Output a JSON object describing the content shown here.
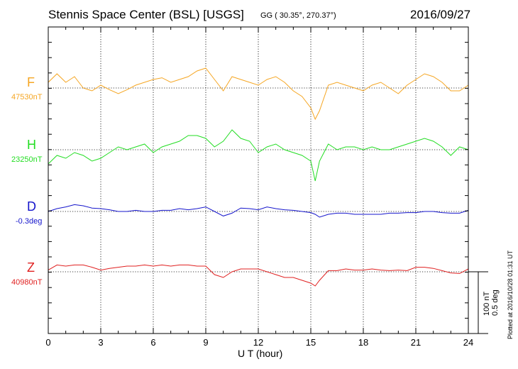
{
  "header": {
    "title": "Stennis Space Center (BSL)  [USGS]",
    "coords": "GG ( 30.35°, 270.37°)",
    "date": "2016/09/27"
  },
  "plot_info": "Plotted at 2016/10/28 01:31  UT",
  "scale": {
    "nt": "100 nT",
    "deg": "0.5 deg"
  },
  "colors": {
    "F": "#f5a623",
    "H": "#22dd22",
    "D": "#1515cc",
    "Z": "#e02020",
    "grid": "#000000"
  },
  "chart_data": {
    "type": "line",
    "xlabel": "U T (hour)",
    "xlim": [
      0,
      24
    ],
    "xticks": [
      "0",
      "3",
      "6",
      "9",
      "12",
      "15",
      "18",
      "21",
      "24"
    ],
    "grid": true,
    "series": [
      {
        "name": "F",
        "baseline_label": "47530nT",
        "x": [
          0,
          0.5,
          1,
          1.5,
          2,
          2.5,
          3,
          3.5,
          4,
          4.5,
          5,
          5.5,
          6,
          6.5,
          7,
          7.5,
          8,
          8.5,
          9,
          9.5,
          10,
          10.5,
          11,
          11.5,
          12,
          12.5,
          13,
          13.5,
          14,
          14.5,
          15,
          15.25,
          15.5,
          16,
          16.5,
          17,
          17.5,
          18,
          18.5,
          19,
          19.5,
          20,
          20.5,
          21,
          21.5,
          22,
          22.5,
          23,
          23.5,
          24
        ],
        "y": [
          10,
          25,
          10,
          20,
          0,
          -5,
          5,
          -3,
          -10,
          -3,
          5,
          10,
          15,
          18,
          10,
          15,
          20,
          30,
          35,
          15,
          -5,
          20,
          15,
          10,
          5,
          15,
          20,
          10,
          -5,
          -15,
          -35,
          -55,
          -40,
          5,
          10,
          5,
          0,
          -5,
          5,
          10,
          0,
          -10,
          5,
          15,
          25,
          20,
          10,
          -5,
          -5,
          5
        ]
      },
      {
        "name": "H",
        "baseline_label": "23250nT",
        "x": [
          0,
          0.5,
          1,
          1.5,
          2,
          2.5,
          3,
          3.5,
          4,
          4.5,
          5,
          5.5,
          6,
          6.5,
          7,
          7.5,
          8,
          8.5,
          9,
          9.5,
          10,
          10.5,
          11,
          11.5,
          12,
          12.5,
          13,
          13.5,
          14,
          14.5,
          15,
          15.25,
          15.5,
          16,
          16.5,
          17,
          17.5,
          18,
          18.5,
          19,
          19.5,
          20,
          20.5,
          21,
          21.5,
          22,
          22.5,
          23,
          23.5,
          24
        ],
        "y": [
          -25,
          -10,
          -15,
          -5,
          -10,
          -20,
          -15,
          -5,
          5,
          0,
          5,
          10,
          -5,
          5,
          10,
          15,
          25,
          25,
          20,
          5,
          15,
          35,
          20,
          15,
          -5,
          5,
          10,
          0,
          -5,
          -10,
          -20,
          -55,
          -20,
          10,
          0,
          5,
          5,
          0,
          5,
          0,
          0,
          5,
          10,
          15,
          20,
          15,
          5,
          -10,
          5,
          0
        ]
      },
      {
        "name": "D",
        "baseline_label": "-0.3deg",
        "x": [
          0,
          0.5,
          1,
          1.5,
          2,
          2.5,
          3,
          3.5,
          4,
          4.5,
          5,
          5.5,
          6,
          6.5,
          7,
          7.5,
          8,
          8.5,
          9,
          9.5,
          10,
          10.5,
          11,
          11.5,
          12,
          12.5,
          13,
          13.5,
          14,
          14.5,
          15,
          15.25,
          15.5,
          16,
          16.5,
          17,
          17.5,
          18,
          18.5,
          19,
          19.5,
          20,
          20.5,
          21,
          21.5,
          22,
          22.5,
          23,
          23.5,
          24
        ],
        "y": [
          0,
          5,
          8,
          12,
          10,
          6,
          5,
          3,
          0,
          0,
          2,
          0,
          0,
          2,
          2,
          5,
          3,
          5,
          8,
          0,
          -8,
          -3,
          6,
          5,
          3,
          8,
          5,
          3,
          2,
          0,
          -2,
          -5,
          -10,
          -5,
          -3,
          -3,
          -5,
          -5,
          -5,
          -5,
          -3,
          -3,
          -2,
          -2,
          0,
          0,
          -2,
          -3,
          -3,
          2
        ]
      },
      {
        "name": "Z",
        "baseline_label": "40980nT",
        "x": [
          0,
          0.5,
          1,
          1.5,
          2,
          2.5,
          3,
          3.5,
          4,
          4.5,
          5,
          5.5,
          6,
          6.5,
          7,
          7.5,
          8,
          8.5,
          9,
          9.5,
          10,
          10.5,
          11,
          11.5,
          12,
          12.5,
          13,
          13.5,
          14,
          14.5,
          15,
          15.25,
          15.5,
          16,
          16.5,
          17,
          17.5,
          18,
          18.5,
          19,
          19.5,
          20,
          20.5,
          21,
          21.5,
          22,
          22.5,
          23,
          23.5,
          24
        ],
        "y": [
          3,
          12,
          10,
          12,
          12,
          8,
          3,
          6,
          8,
          10,
          10,
          12,
          10,
          12,
          10,
          12,
          12,
          10,
          10,
          -5,
          -10,
          0,
          5,
          5,
          5,
          0,
          -5,
          -10,
          -10,
          -15,
          -20,
          -25,
          -15,
          2,
          2,
          5,
          3,
          3,
          5,
          3,
          2,
          3,
          2,
          8,
          8,
          6,
          2,
          -2,
          -3,
          5
        ]
      }
    ]
  }
}
